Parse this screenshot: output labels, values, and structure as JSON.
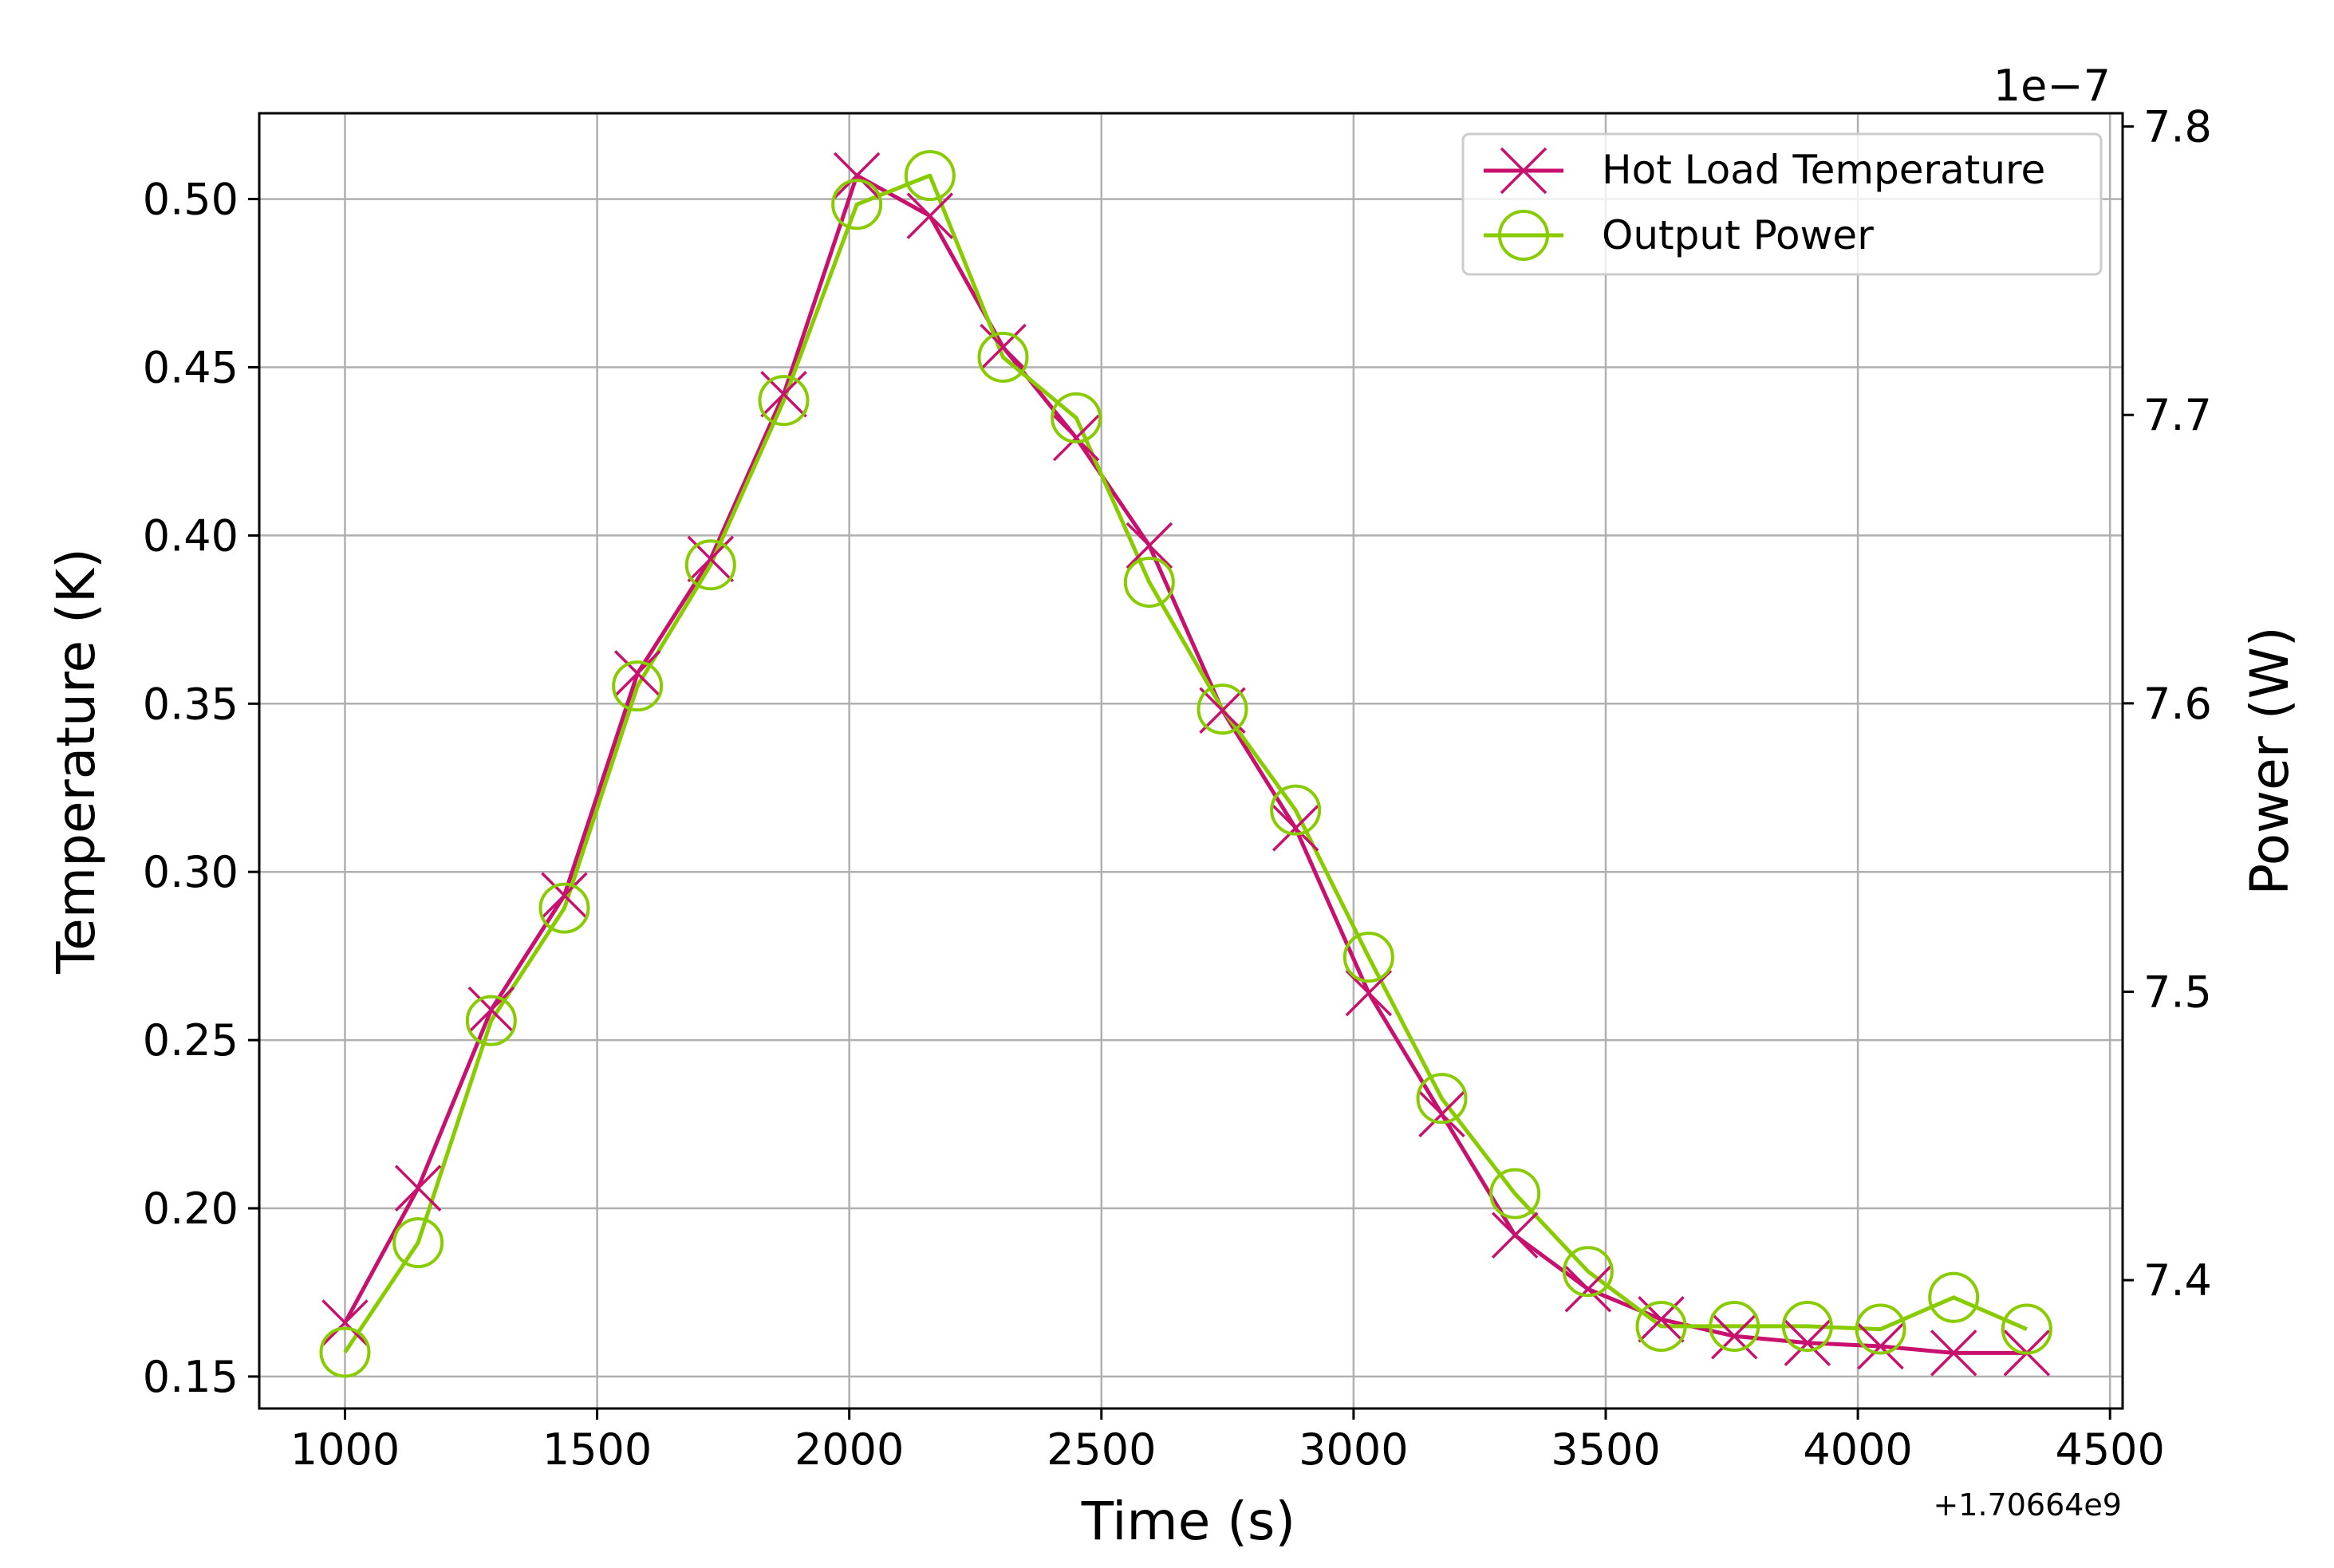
{
  "chart_data": {
    "type": "line",
    "xlabel": "Time (s)",
    "ylabel_left": "Temperature (K)",
    "ylabel_right": "Power (W)",
    "x_offset_label": "+1.70664e9",
    "right_scale_label": "1e−7",
    "xlim": [
      830,
      4525
    ],
    "ylim_left": [
      0.1405,
      0.5255
    ],
    "ylim_right": [
      7.3555,
      7.8046
    ],
    "x_ticks": [
      1000,
      1500,
      2000,
      2500,
      3000,
      3500,
      4000,
      4500
    ],
    "x_tick_labels": [
      "1000",
      "1500",
      "2000",
      "2500",
      "3000",
      "3500",
      "4000",
      "4500"
    ],
    "y_left_ticks": [
      0.15,
      0.2,
      0.25,
      0.3,
      0.35,
      0.4,
      0.45,
      0.5
    ],
    "y_left_tick_labels": [
      "0.15",
      "0.20",
      "0.25",
      "0.30",
      "0.35",
      "0.40",
      "0.45",
      "0.50"
    ],
    "y_right_ticks": [
      7.4,
      7.5,
      7.6,
      7.7,
      7.8
    ],
    "y_right_tick_labels": [
      "7.4",
      "7.5",
      "7.6",
      "7.7",
      "7.8"
    ],
    "grid": true,
    "legend_position": "top-right",
    "x": [
      1000,
      1145,
      1290,
      1435,
      1580,
      1725,
      1870,
      2015,
      2160,
      2305,
      2450,
      2595,
      2740,
      2885,
      3030,
      3175,
      3320,
      3465,
      3610,
      3755,
      3900,
      4045,
      4190,
      4335
    ],
    "series": [
      {
        "name": "Hot Load Temperature",
        "axis": "left",
        "color": "#c8106e",
        "marker": "x",
        "values": [
          0.166,
          0.206,
          0.259,
          0.293,
          0.359,
          0.393,
          0.442,
          0.507,
          0.495,
          0.456,
          0.429,
          0.397,
          0.348,
          0.313,
          0.264,
          0.228,
          0.192,
          0.176,
          0.167,
          0.162,
          0.16,
          0.159,
          0.157,
          0.157
        ]
      },
      {
        "name": "Output Power",
        "axis": "right",
        "color": "#88cc00",
        "marker": "o",
        "values": [
          7.375,
          7.413,
          7.49,
          7.529,
          7.606,
          7.648,
          7.705,
          7.773,
          7.783,
          7.72,
          7.699,
          7.642,
          7.598,
          7.563,
          7.512,
          7.463,
          7.43,
          7.403,
          7.384,
          7.384,
          7.384,
          7.383,
          7.394,
          7.383
        ]
      }
    ]
  }
}
